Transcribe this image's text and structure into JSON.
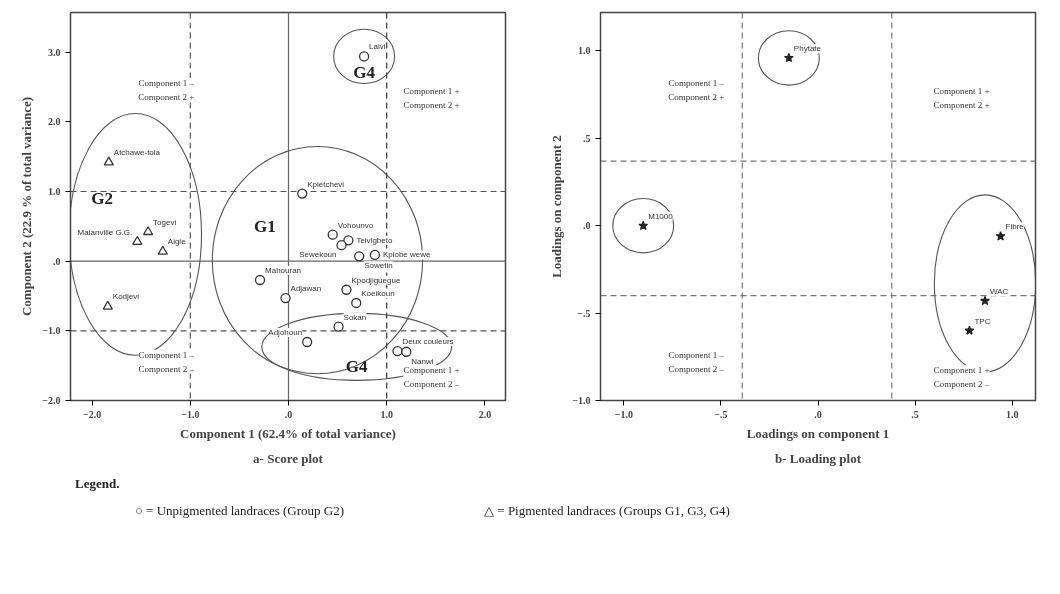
{
  "chart_data": [
    {
      "type": "scatter",
      "xlabel": "Component 1 (62.4% of total variance)",
      "ylabel": "Component 2 (22.9 % of total variance)",
      "subtitle": "a- Score plot",
      "xlim": [
        -2.22,
        2.21
      ],
      "ylim": [
        -2.0,
        3.57
      ],
      "xticks": [
        {
          "value": -2,
          "label": "−2.0"
        },
        {
          "value": -1,
          "label": "−1.0"
        },
        {
          "value": 0,
          "label": ".0"
        },
        {
          "value": 1,
          "label": "1.0"
        },
        {
          "value": 2,
          "label": "2.0"
        }
      ],
      "yticks": [
        {
          "value": -2,
          "label": "−2.0"
        },
        {
          "value": -1,
          "label": "−1.0"
        },
        {
          "value": 0,
          "label": ".0"
        },
        {
          "value": 1,
          "label": "1.0"
        },
        {
          "value": 2,
          "label": "2.0"
        },
        {
          "value": 3,
          "label": "3.0"
        }
      ],
      "grid": false,
      "series": [
        {
          "name": "G2",
          "color": "#333333",
          "marker": "triangle",
          "x": [
            -1.83,
            -1.43,
            -1.54,
            -1.28,
            -1.84
          ],
          "values": [
            1.42,
            0.42,
            0.28,
            0.14,
            -0.65
          ]
        },
        {
          "name": "G4",
          "color": "#333333",
          "marker": "circle",
          "x": [
            0.77
          ],
          "values": [
            2.94
          ]
        },
        {
          "name": "G1",
          "color": "#333333",
          "marker": "circle",
          "x": [
            0.14,
            0.45,
            0.61,
            0.54,
            0.72,
            0.88,
            -0.29,
            -0.03,
            0.59,
            0.69,
            0.51
          ],
          "values": [
            0.97,
            0.38,
            0.3,
            0.23,
            0.07,
            0.09,
            -0.27,
            -0.53,
            -0.41,
            -0.6,
            -0.94
          ]
        },
        {
          "name": "G4",
          "color": "#333333",
          "marker": "circle",
          "x": [
            0.19,
            1.11,
            1.2
          ],
          "values": [
            -1.16,
            -1.29,
            -1.3
          ]
        }
      ],
      "ref_lines": [
        {
          "axis": "x",
          "value": -1,
          "line_style": "dashed",
          "color": "#555555"
        },
        {
          "axis": "x",
          "value": 1,
          "line_style": "dashed",
          "color": "#333333"
        },
        {
          "axis": "y",
          "value": 1,
          "line_style": "dashed",
          "color": "#555555"
        },
        {
          "axis": "y",
          "value": -1,
          "line_style": "dashed",
          "color": "#555555"
        },
        {
          "axis": "x",
          "value": 0,
          "line_style": "solid",
          "color": "#666666"
        },
        {
          "axis": "y",
          "value": 0,
          "line_style": "solid",
          "color": "#666666"
        }
      ],
      "annotations": [
        {
          "text": "Atchawe-tola",
          "x": -1.83,
          "y": 1.42
        },
        {
          "text": "Togevi",
          "x": -1.43,
          "y": 0.42
        },
        {
          "text": "Malanville G.G.",
          "x": -1.54,
          "y": 0.28
        },
        {
          "text": "Aigle",
          "x": -1.28,
          "y": 0.14
        },
        {
          "text": "Kodjevi",
          "x": -1.84,
          "y": -0.65
        },
        {
          "text": "Laivi",
          "x": 0.77,
          "y": 2.94
        },
        {
          "text": "Kplétchevi",
          "x": 0.14,
          "y": 0.97
        },
        {
          "text": "Vohounvo",
          "x": 0.45,
          "y": 0.38
        },
        {
          "text": "Teivigbeto",
          "x": 0.61,
          "y": 0.3
        },
        {
          "text": "Sewekoun",
          "x": 0.54,
          "y": 0.23
        },
        {
          "text": "Sowetin",
          "x": 0.72,
          "y": 0.07
        },
        {
          "text": "Kplobe wewe",
          "x": 0.88,
          "y": 0.09
        },
        {
          "text": "Mahouran",
          "x": -0.29,
          "y": -0.27
        },
        {
          "text": "Adjawan",
          "x": -0.03,
          "y": -0.53
        },
        {
          "text": "Kpodjiguegue",
          "x": 0.59,
          "y": -0.41
        },
        {
          "text": "Koeikoun",
          "x": 0.69,
          "y": -0.6
        },
        {
          "text": "Sokan",
          "x": 0.51,
          "y": -0.94
        },
        {
          "text": "Adjohoun",
          "x": 0.19,
          "y": -1.16
        },
        {
          "text": "Deux couleurs",
          "x": 1.11,
          "y": -1.29
        },
        {
          "text": "Nanwi",
          "x": 1.2,
          "y": -1.3
        },
        "Component 1 –\nComponent 2 +",
        "Component 1 +\nComponent 2 +",
        "Component 1 –\nComponent 2 –",
        "Component 1 +\nComponent 2 –",
        "Legend.",
        "○ = Unpigmented landraces (Group G2)",
        "△ = Pigmented landraces (Groups G1, G3, G4)"
      ]
    },
    {
      "type": "scatter",
      "xlabel": "Loadings on component 1",
      "ylabel": "Loadings on component 2",
      "subtitle": "b- Loading plot",
      "xlim": [
        -1.12,
        1.12
      ],
      "ylim": [
        -1.0,
        1.22
      ],
      "xticks": [
        {
          "value": -1,
          "label": "−1.0"
        },
        {
          "value": -0.5,
          "label": "−.5"
        },
        {
          "value": 0,
          "label": ".0"
        },
        {
          "value": 0.5,
          "label": ".5"
        },
        {
          "value": 1,
          "label": "1.0"
        }
      ],
      "yticks": [
        {
          "value": -1,
          "label": "−1.0"
        },
        {
          "value": -0.5,
          "label": "−.5"
        },
        {
          "value": 0,
          "label": ".0"
        },
        {
          "value": 0.5,
          "label": ".5"
        },
        {
          "value": 1,
          "label": "1.0"
        }
      ],
      "grid": false,
      "series": [
        {
          "color": "#222222",
          "marker": "star",
          "x": [
            -0.15
          ],
          "values": [
            0.96
          ]
        },
        {
          "color": "#222222",
          "marker": "star",
          "x": [
            -0.9
          ],
          "values": [
            0.0
          ]
        },
        {
          "color": "#222222",
          "marker": "star",
          "x": [
            0.94,
            0.86,
            0.78
          ],
          "values": [
            -0.06,
            -0.43,
            -0.6
          ]
        }
      ],
      "ref_lines": [
        {
          "axis": "x",
          "value": -0.39,
          "line_style": "dashed",
          "color": "#777777"
        },
        {
          "axis": "x",
          "value": 0.38,
          "line_style": "dashed",
          "color": "#777777"
        },
        {
          "axis": "y",
          "value": 0.37,
          "line_style": "dashed",
          "color": "#777777"
        },
        {
          "axis": "y",
          "value": -0.4,
          "line_style": "dashed",
          "color": "#777777"
        }
      ],
      "annotations": [
        {
          "text": "Phytate",
          "x": -0.15,
          "y": 0.96
        },
        {
          "text": "M1000",
          "x": -0.9,
          "y": 0.0
        },
        {
          "text": "Fibre",
          "x": 0.94,
          "y": -0.06
        },
        {
          "text": "WAC",
          "x": 0.86,
          "y": -0.43
        },
        {
          "text": "TPC",
          "x": 0.78,
          "y": -0.6
        },
        "Component 1 –\nComponent 2 +",
        "Component 1 +\nComponent 2 +",
        "Component 1 –\nComponent 2 –",
        "Component 1 +\nComponent 2 –"
      ]
    }
  ]
}
